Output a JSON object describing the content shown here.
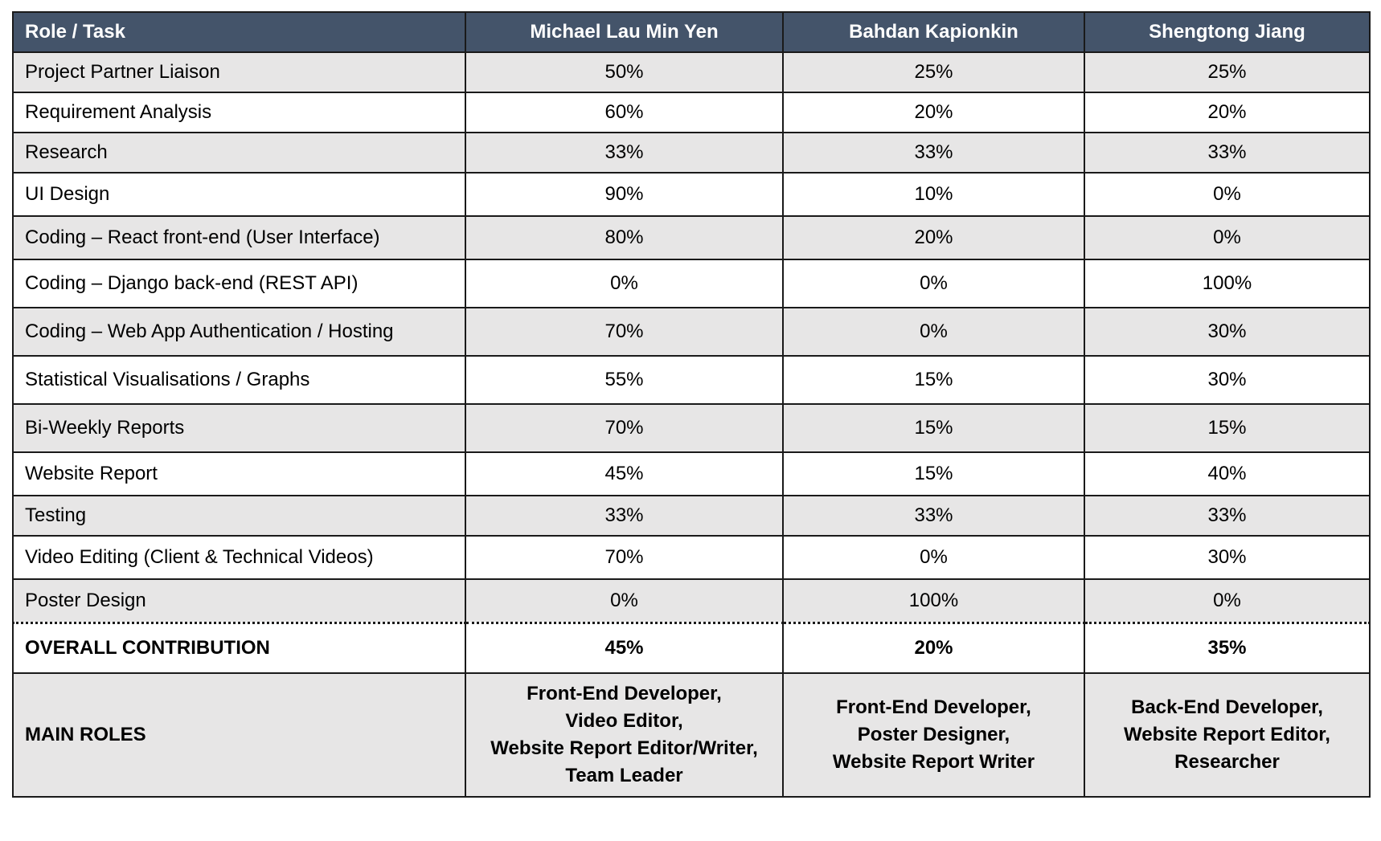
{
  "table": {
    "headers": [
      "Role / Task",
      "Michael Lau Min Yen",
      "Bahdan Kapionkin",
      "Shengtong Jiang"
    ],
    "rows": [
      {
        "task": "Project Partner Liaison",
        "values": [
          "50%",
          "25%",
          "25%"
        ]
      },
      {
        "task": "Requirement Analysis",
        "values": [
          "60%",
          "20%",
          "20%"
        ]
      },
      {
        "task": "Research",
        "values": [
          "33%",
          "33%",
          "33%"
        ]
      },
      {
        "task": "UI Design",
        "values": [
          "90%",
          "10%",
          "0%"
        ]
      },
      {
        "task": "Coding – React front-end (User Interface)",
        "values": [
          "80%",
          "20%",
          "0%"
        ]
      },
      {
        "task": "Coding – Django back-end (REST API)",
        "values": [
          "0%",
          "0%",
          "100%"
        ]
      },
      {
        "task": "Coding – Web App Authentication / Hosting",
        "values": [
          "70%",
          "0%",
          "30%"
        ]
      },
      {
        "task": "Statistical Visualisations / Graphs",
        "values": [
          "55%",
          "15%",
          "30%"
        ]
      },
      {
        "task": "Bi-Weekly Reports",
        "values": [
          "70%",
          "15%",
          "15%"
        ]
      },
      {
        "task": "Website Report",
        "values": [
          "45%",
          "15%",
          "40%"
        ]
      },
      {
        "task": "Testing",
        "values": [
          "33%",
          "33%",
          "33%"
        ]
      },
      {
        "task": "Video Editing (Client & Technical Videos)",
        "values": [
          "70%",
          "0%",
          "30%"
        ]
      },
      {
        "task": "Poster Design",
        "values": [
          "0%",
          "100%",
          "0%"
        ]
      }
    ],
    "overall": {
      "label": "OVERALL CONTRIBUTION",
      "values": [
        "45%",
        "20%",
        "35%"
      ]
    },
    "main_roles": {
      "label": "MAIN ROLES",
      "members": [
        [
          "Front-End Developer,",
          "Video Editor,",
          "Website Report Editor/Writer,",
          "Team Leader"
        ],
        [
          "Front-End Developer,",
          "Poster Designer,",
          "Website Report Writer"
        ],
        [
          "Back-End Developer,",
          "Website Report Editor,",
          "Researcher"
        ]
      ]
    }
  },
  "colors": {
    "header_bg": "#44546a",
    "header_text": "#ffffff",
    "row_shade": "#e7e6e6",
    "row_plain": "#ffffff",
    "border": "#1a1a1a"
  }
}
